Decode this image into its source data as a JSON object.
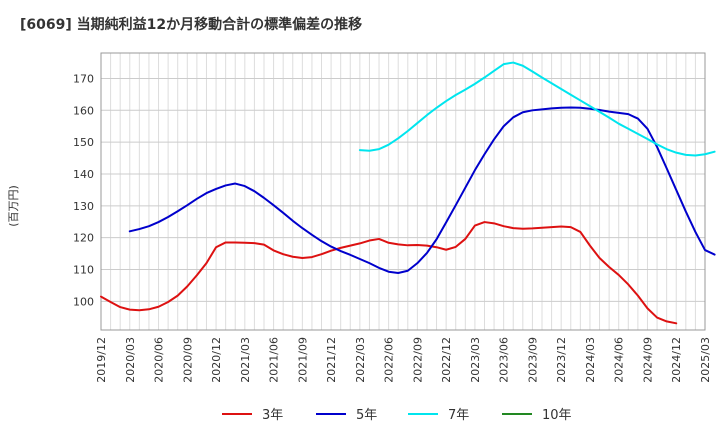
{
  "chart_data": {
    "type": "line",
    "title": "[6069]  当期純利益12か月移動合計の標準偏差の推移",
    "ylabel": "(百万円)",
    "xlabel": "",
    "ylim": [
      91,
      178
    ],
    "yticks": [
      100,
      110,
      120,
      130,
      140,
      150,
      160,
      170
    ],
    "x_tick_labels": [
      "2019/12",
      "2020/03",
      "2020/06",
      "2020/09",
      "2020/12",
      "2021/03",
      "2021/06",
      "2021/09",
      "2021/12",
      "2022/03",
      "2022/06",
      "2022/09",
      "2022/12",
      "2023/03",
      "2023/06",
      "2023/09",
      "2023/12",
      "2024/03",
      "2024/06",
      "2024/09",
      "2024/12",
      "2025/03"
    ],
    "grid": true,
    "legend_position": "bottom",
    "series": [
      {
        "name": "3年",
        "color": "#dd1111",
        "start_index": 0,
        "values": [
          101.5,
          99.8,
          98.2,
          97.4,
          97.2,
          97.5,
          98.3,
          99.8,
          101.8,
          104.7,
          108.2,
          112.0,
          117.0,
          118.5,
          118.5,
          118.4,
          118.3,
          117.8,
          116.0,
          114.8,
          114.0,
          113.6,
          113.9,
          114.8,
          115.9,
          116.8,
          117.5,
          118.2,
          119.1,
          119.6,
          118.4,
          117.9,
          117.6,
          117.7,
          117.5,
          117.0,
          116.2,
          117.1,
          119.6,
          123.8,
          124.9,
          124.5,
          123.6,
          123.0,
          122.8,
          122.9,
          123.1,
          123.3,
          123.5,
          123.3,
          121.8,
          117.5,
          113.6,
          110.8,
          108.3,
          105.3,
          101.8,
          97.8,
          94.9,
          93.7,
          93.1
        ]
      },
      {
        "name": "5年",
        "color": "#0000cc",
        "start_index": 3,
        "values": [
          122.0,
          122.7,
          123.6,
          124.9,
          126.5,
          128.3,
          130.2,
          132.2,
          134.0,
          135.3,
          136.4,
          137.0,
          136.2,
          134.6,
          132.5,
          130.2,
          127.8,
          125.3,
          123.0,
          120.9,
          118.9,
          117.2,
          115.8,
          114.6,
          113.3,
          112.0,
          110.5,
          109.3,
          108.9,
          109.6,
          112.0,
          115.2,
          119.5,
          124.8,
          130.2,
          135.7,
          141.2,
          146.2,
          150.9,
          155.0,
          157.8,
          159.4,
          160.0,
          160.3,
          160.6,
          160.8,
          160.9,
          160.8,
          160.5,
          160.1,
          159.6,
          159.2,
          158.8,
          157.4,
          154.2,
          148.5,
          141.8,
          135.0,
          128.2,
          121.8,
          116.1,
          114.7
        ]
      },
      {
        "name": "7年",
        "color": "#00e5ee",
        "start_index": 27,
        "values": [
          147.5,
          147.3,
          147.8,
          149.2,
          151.2,
          153.5,
          156.0,
          158.5,
          160.8,
          162.9,
          164.8,
          166.5,
          168.3,
          170.3,
          172.4,
          174.5,
          175.0,
          174.0,
          172.2,
          170.3,
          168.5,
          166.7,
          164.9,
          163.1,
          161.3,
          159.5,
          157.7,
          155.8,
          154.2,
          152.6,
          151.0,
          149.3,
          147.8,
          146.7,
          146.0,
          145.8,
          146.2,
          147.0
        ]
      },
      {
        "name": "10年",
        "color": "#228822",
        "start_index": 0,
        "values": []
      }
    ]
  }
}
